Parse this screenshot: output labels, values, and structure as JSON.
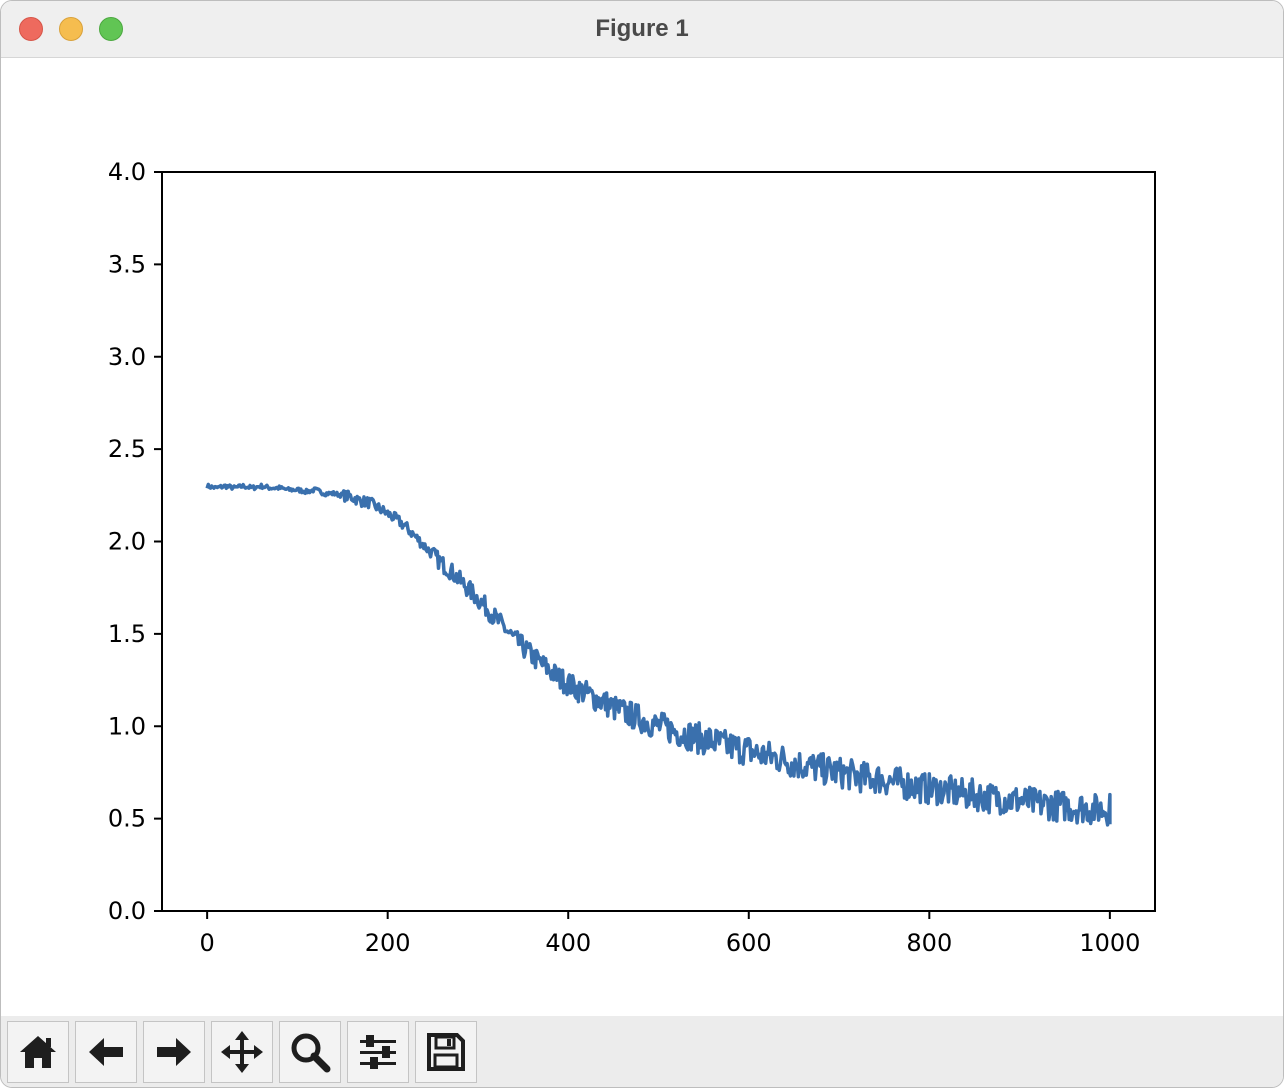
{
  "window": {
    "title": "Figure 1"
  },
  "toolbar": {
    "buttons": [
      {
        "icon": "home-icon",
        "name": "home-button"
      },
      {
        "icon": "back-arrow-icon",
        "name": "back-button"
      },
      {
        "icon": "forward-arrow-icon",
        "name": "forward-button"
      },
      {
        "icon": "pan-move-icon",
        "name": "pan-button"
      },
      {
        "icon": "zoom-magnifier-icon",
        "name": "zoom-button"
      },
      {
        "icon": "configure-subplots-icon",
        "name": "configure-subplots-button"
      },
      {
        "icon": "save-floppy-icon",
        "name": "save-button"
      }
    ]
  },
  "colors": {
    "line": "#3a70ad",
    "axes": "#000000",
    "toolbar_bg": "#ececec",
    "titlebar_bg": "#efefef"
  },
  "chart_data": {
    "type": "line",
    "title": "",
    "xlabel": "",
    "ylabel": "",
    "xlim": [
      -50,
      1050
    ],
    "ylim": [
      0.0,
      4.0
    ],
    "xticks": [
      0,
      200,
      400,
      600,
      800,
      1000
    ],
    "xtick_labels": [
      "0",
      "200",
      "400",
      "600",
      "800",
      "1000"
    ],
    "yticks": [
      0.0,
      0.5,
      1.0,
      1.5,
      2.0,
      2.5,
      3.0,
      3.5,
      4.0
    ],
    "ytick_labels": [
      "0.0",
      "0.5",
      "1.0",
      "1.5",
      "2.0",
      "2.5",
      "3.0",
      "3.5",
      "4.0"
    ],
    "grid": false,
    "legend": "none",
    "series": [
      {
        "x": [
          0,
          10,
          20,
          30,
          40,
          50,
          60,
          70,
          80,
          90,
          100,
          110,
          120,
          130,
          140,
          150,
          160,
          170,
          180,
          190,
          200,
          210,
          220,
          230,
          240,
          250,
          260,
          270,
          280,
          290,
          300,
          310,
          320,
          330,
          340,
          350,
          360,
          370,
          380,
          390,
          400,
          410,
          420,
          430,
          440,
          450,
          460,
          470,
          480,
          490,
          500,
          510,
          520,
          530,
          540,
          550,
          560,
          570,
          580,
          590,
          600,
          610,
          620,
          630,
          640,
          650,
          660,
          670,
          680,
          690,
          700,
          710,
          720,
          730,
          740,
          750,
          760,
          770,
          780,
          790,
          800,
          810,
          820,
          830,
          840,
          850,
          860,
          870,
          880,
          890,
          900,
          910,
          920,
          930,
          940,
          950,
          960,
          970,
          980,
          990,
          1000
        ],
        "y": [
          2.3,
          2.29,
          2.3,
          2.29,
          2.3,
          2.29,
          2.3,
          2.29,
          2.29,
          2.28,
          2.28,
          2.27,
          2.28,
          2.26,
          2.26,
          2.25,
          2.24,
          2.22,
          2.21,
          2.18,
          2.15,
          2.12,
          2.08,
          2.03,
          1.98,
          1.93,
          1.88,
          1.84,
          1.79,
          1.74,
          1.69,
          1.64,
          1.58,
          1.53,
          1.47,
          1.43,
          1.38,
          1.34,
          1.3,
          1.26,
          1.23,
          1.2,
          1.18,
          1.15,
          1.13,
          1.1,
          1.08,
          1.06,
          1.04,
          1.02,
          1.0,
          0.99,
          0.97,
          0.96,
          0.94,
          0.93,
          0.92,
          0.9,
          0.89,
          0.88,
          0.87,
          0.85,
          0.84,
          0.83,
          0.82,
          0.8,
          0.79,
          0.78,
          0.77,
          0.76,
          0.75,
          0.74,
          0.73,
          0.72,
          0.72,
          0.71,
          0.7,
          0.69,
          0.68,
          0.67,
          0.66,
          0.66,
          0.65,
          0.64,
          0.63,
          0.63,
          0.62,
          0.61,
          0.61,
          0.6,
          0.6,
          0.59,
          0.58,
          0.58,
          0.57,
          0.57,
          0.56,
          0.56,
          0.55,
          0.55,
          0.55
        ]
      }
    ]
  }
}
